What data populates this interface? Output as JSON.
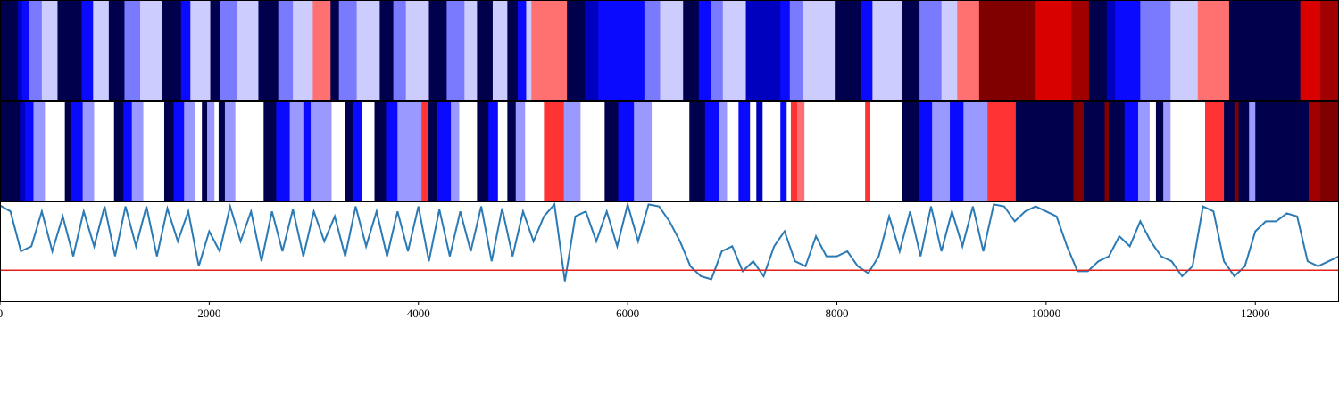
{
  "chart_data": [
    {
      "type": "heatstrip",
      "colormap": "seismic",
      "clim": [
        -1,
        1
      ],
      "xlim": [
        0,
        12800
      ],
      "edges": [
        0,
        170,
        210,
        280,
        400,
        550,
        780,
        890,
        1040,
        1190,
        1340,
        1550,
        1730,
        1820,
        2010,
        2100,
        2270,
        2470,
        2660,
        2800,
        2990,
        3160,
        3240,
        3410,
        3630,
        3760,
        3880,
        4100,
        4270,
        4440,
        4560,
        4710,
        4850,
        4950,
        5030,
        5080,
        5420,
        5590,
        5720,
        6160,
        6310,
        6530,
        6680,
        6800,
        6910,
        7130,
        7460,
        7550,
        7680,
        7980,
        8230,
        8340,
        8620,
        8790,
        9000,
        9150,
        9360,
        9900,
        10240,
        10410,
        10580,
        10660,
        10900,
        11190,
        11450,
        11750,
        12430,
        12620,
        12800
      ],
      "values": [
        -1,
        -0.68,
        -0.48,
        -0.26,
        -0.1,
        -1,
        -0.48,
        -0.1,
        -1,
        -0.26,
        -0.1,
        -1,
        -0.48,
        -0.1,
        -1,
        -0.26,
        -0.1,
        -1,
        -0.26,
        -0.1,
        0.28,
        -1,
        -0.26,
        -0.1,
        -1,
        -0.26,
        -0.1,
        -1,
        -0.26,
        -0.1,
        -1,
        -0.1,
        -1,
        -0.48,
        -0.1,
        0.28,
        -1,
        -0.68,
        -0.48,
        -0.26,
        -0.1,
        -1,
        -0.48,
        -0.26,
        -0.1,
        -0.68,
        -0.48,
        -0.26,
        -0.1,
        -1,
        -0.48,
        -0.1,
        -1,
        -0.26,
        -0.1,
        0.28,
        1,
        0.65,
        0.87,
        -1,
        -0.68,
        -0.48,
        -0.26,
        -0.1,
        0.28,
        -1,
        0.65,
        0.87
      ]
    },
    {
      "type": "heatstrip",
      "colormap": "seismic",
      "clim": [
        -1,
        1
      ],
      "xlim": [
        0,
        12800
      ],
      "edges": [
        0,
        190,
        240,
        320,
        430,
        620,
        680,
        790,
        900,
        1090,
        1180,
        1260,
        1370,
        1570,
        1660,
        1760,
        1860,
        1930,
        1980,
        2050,
        2090,
        2150,
        2250,
        2520,
        2640,
        2770,
        2900,
        2970,
        3170,
        3300,
        3370,
        3460,
        3580,
        3690,
        3800,
        4030,
        4090,
        4180,
        4310,
        4390,
        4560,
        4670,
        4760,
        4850,
        4930,
        5020,
        5200,
        5390,
        5550,
        5780,
        5910,
        6060,
        6230,
        6590,
        6740,
        6870,
        6950,
        7060,
        7170,
        7230,
        7290,
        7460,
        7520,
        7560,
        7620,
        7690,
        8270,
        8320,
        8620,
        8790,
        8910,
        9080,
        9210,
        9440,
        9710,
        10260,
        10360,
        10560,
        10600,
        10750,
        10880,
        10990,
        11050,
        11120,
        11190,
        11520,
        11700,
        11800,
        11840,
        11940,
        12000,
        12510,
        12620,
        12800
      ],
      "values": [
        -1,
        -0.68,
        -0.48,
        -0.2,
        0,
        -1,
        -0.48,
        -0.2,
        0,
        -1,
        -0.48,
        -0.2,
        0,
        -1,
        -0.48,
        -0.2,
        0,
        -1,
        -0.2,
        0,
        -1,
        -0.2,
        0,
        -1,
        -0.48,
        -0.2,
        -0.48,
        -0.2,
        0,
        -1,
        -0.48,
        0,
        -1,
        -0.48,
        -0.2,
        0.4,
        -1,
        -0.48,
        -0.2,
        0,
        -1,
        -0.48,
        0,
        -1,
        -0.2,
        0,
        0.4,
        -0.2,
        0,
        -1,
        -0.48,
        -0.2,
        0,
        -1,
        -0.48,
        -0.2,
        0,
        -0.48,
        0,
        -0.68,
        0,
        -0.48,
        0,
        0.4,
        0.28,
        0,
        0.4,
        0,
        -1,
        -0.48,
        -0.2,
        -0.48,
        -0.2,
        0.4,
        -1,
        1,
        -1,
        1,
        -1,
        -0.48,
        -0.2,
        0,
        -1,
        -0.2,
        0,
        0.4,
        -1,
        1,
        -1,
        -0.2,
        -1,
        0.87,
        1
      ]
    },
    {
      "type": "line",
      "xlim": [
        0,
        12800
      ],
      "ylim": [
        0,
        1
      ],
      "xticks": [
        0,
        2000,
        4000,
        6000,
        8000,
        10000,
        12000
      ],
      "hline": {
        "value": 0.31,
        "color": "#e8201a"
      },
      "x": [
        0,
        100,
        200,
        300,
        400,
        500,
        600,
        700,
        800,
        900,
        1000,
        1100,
        1200,
        1300,
        1400,
        1500,
        1600,
        1700,
        1800,
        1900,
        2000,
        2100,
        2200,
        2300,
        2400,
        2500,
        2600,
        2700,
        2800,
        2900,
        3000,
        3100,
        3200,
        3300,
        3400,
        3500,
        3600,
        3700,
        3800,
        3900,
        4000,
        4100,
        4200,
        4300,
        4400,
        4500,
        4600,
        4700,
        4800,
        4900,
        5000,
        5100,
        5200,
        5300,
        5400,
        5500,
        5600,
        5700,
        5800,
        5900,
        6000,
        6100,
        6200,
        6300,
        6400,
        6500,
        6600,
        6700,
        6800,
        6900,
        7000,
        7100,
        7200,
        7300,
        7400,
        7500,
        7600,
        7700,
        7800,
        7900,
        8000,
        8100,
        8200,
        8300,
        8400,
        8500,
        8600,
        8700,
        8800,
        8900,
        9000,
        9100,
        9200,
        9300,
        9400,
        9500,
        9600,
        9700,
        9800,
        9900,
        10000,
        10100,
        10200,
        10300,
        10400,
        10500,
        10600,
        10700,
        10800,
        10900,
        11000,
        11100,
        11200,
        11300,
        11400,
        11500,
        11600,
        11700,
        11800,
        11900,
        12000,
        12100,
        12200,
        12300,
        12400,
        12500,
        12600,
        12700,
        12800
      ],
      "series": [
        {
          "color": "#2a7ab5",
          "values": [
            0.96,
            0.9,
            0.5,
            0.55,
            0.9,
            0.5,
            0.85,
            0.45,
            0.9,
            0.55,
            0.95,
            0.45,
            0.95,
            0.55,
            0.95,
            0.45,
            0.93,
            0.6,
            0.9,
            0.35,
            0.7,
            0.5,
            0.95,
            0.6,
            0.9,
            0.4,
            0.9,
            0.5,
            0.92,
            0.45,
            0.9,
            0.6,
            0.85,
            0.45,
            0.95,
            0.55,
            0.9,
            0.45,
            0.9,
            0.5,
            0.95,
            0.4,
            0.92,
            0.45,
            0.9,
            0.5,
            0.95,
            0.4,
            0.93,
            0.45,
            0.9,
            0.6,
            0.85,
            0.97,
            0.2,
            0.85,
            0.9,
            0.6,
            0.9,
            0.55,
            0.97,
            0.6,
            0.97,
            0.95,
            0.8,
            0.6,
            0.35,
            0.25,
            0.22,
            0.5,
            0.55,
            0.3,
            0.4,
            0.25,
            0.55,
            0.7,
            0.4,
            0.35,
            0.65,
            0.45,
            0.45,
            0.5,
            0.35,
            0.28,
            0.45,
            0.85,
            0.5,
            0.9,
            0.45,
            0.95,
            0.5,
            0.9,
            0.55,
            0.95,
            0.5,
            0.97,
            0.95,
            0.8,
            0.9,
            0.95,
            0.9,
            0.85,
            0.55,
            0.3,
            0.3,
            0.4,
            0.45,
            0.65,
            0.55,
            0.8,
            0.6,
            0.45,
            0.4,
            0.25,
            0.35,
            0.95,
            0.9,
            0.4,
            0.25,
            0.35,
            0.7,
            0.8,
            0.8,
            0.88,
            0.85,
            0.4,
            0.35,
            0.4,
            0.45
          ]
        }
      ]
    }
  ]
}
